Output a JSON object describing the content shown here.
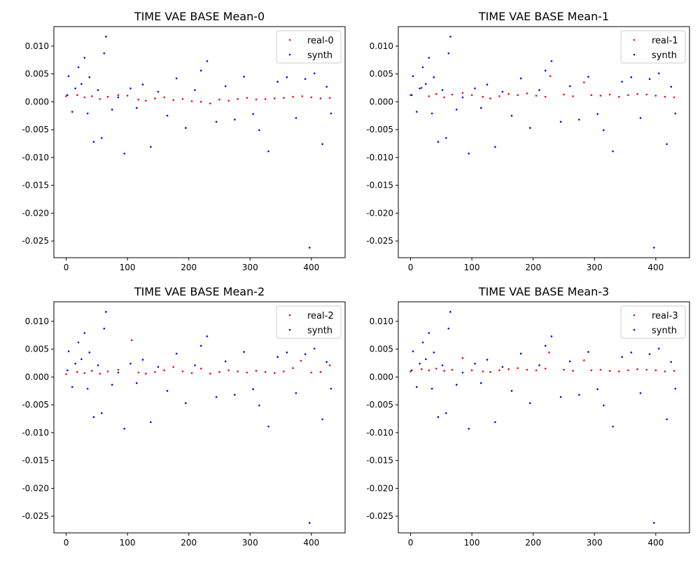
{
  "chart_data": [
    {
      "type": "scatter",
      "title": "TIME VAE BASE Mean-0",
      "xlim": [
        -20,
        455
      ],
      "ylim": [
        -0.028,
        0.0135
      ],
      "x_ticks": [
        0,
        100,
        200,
        300,
        400
      ],
      "y_ticks": [
        0.01,
        0.005,
        0.0,
        -0.005,
        -0.01,
        -0.015,
        -0.02,
        -0.025
      ],
      "legend_position": "top-right",
      "series": [
        {
          "name": "real-0",
          "color": "#ff0000",
          "x": [
            0,
            18,
            30,
            42,
            55,
            68,
            85,
            100,
            118,
            130,
            145,
            160,
            175,
            190,
            205,
            220,
            235,
            250,
            265,
            280,
            295,
            310,
            325,
            340,
            355,
            370,
            385,
            400,
            415,
            430
          ],
          "y": [
            0.001,
            0.0012,
            0.0008,
            0.001,
            0.0005,
            0.0009,
            0.0012,
            0.0011,
            0.0004,
            0.0002,
            0.0006,
            0.0008,
            0.0003,
            0.0005,
            0.0001,
            0.0,
            -0.0003,
            0.0004,
            0.0002,
            0.0005,
            0.0007,
            0.0004,
            0.0005,
            0.0006,
            0.0007,
            0.0009,
            0.001,
            0.0008,
            0.0006,
            0.0007
          ]
        },
        {
          "name": "synth",
          "color": "#0000ff",
          "x": [
            2,
            4,
            10,
            15,
            20,
            25,
            30,
            35,
            38,
            45,
            52,
            58,
            62,
            65,
            75,
            85,
            95,
            105,
            115,
            125,
            138,
            150,
            165,
            180,
            195,
            210,
            220,
            230,
            245,
            260,
            275,
            290,
            305,
            315,
            330,
            345,
            360,
            375,
            390,
            397,
            405,
            418,
            425,
            432
          ],
          "y": [
            0.0012,
            0.0046,
            -0.0018,
            0.0024,
            0.0062,
            0.0032,
            0.0079,
            -0.0021,
            0.0044,
            -0.0072,
            0.0021,
            -0.0065,
            0.0087,
            0.0117,
            -0.0014,
            0.0008,
            -0.0093,
            0.0024,
            -0.0011,
            0.0031,
            -0.0081,
            0.0018,
            -0.0025,
            0.0042,
            -0.0047,
            0.0021,
            0.0056,
            0.0073,
            -0.0036,
            0.0028,
            -0.0032,
            0.0045,
            -0.0022,
            -0.0051,
            -0.0089,
            0.0036,
            0.0044,
            -0.0029,
            0.0041,
            -0.0262,
            0.0051,
            -0.0076,
            0.0027,
            -0.0021
          ]
        }
      ]
    },
    {
      "type": "scatter",
      "title": "TIME VAE BASE Mean-1",
      "xlim": [
        -20,
        455
      ],
      "ylim": [
        -0.028,
        0.0135
      ],
      "x_ticks": [
        0,
        100,
        200,
        300,
        400
      ],
      "y_ticks": [
        0.01,
        0.005,
        0.0,
        -0.005,
        -0.01,
        -0.015,
        -0.02,
        -0.025
      ],
      "legend_position": "top-right",
      "series": [
        {
          "name": "real-1",
          "color": "#ff0000",
          "x": [
            0,
            18,
            30,
            42,
            55,
            68,
            85,
            100,
            118,
            130,
            145,
            160,
            175,
            190,
            205,
            220,
            228,
            250,
            265,
            283,
            295,
            310,
            325,
            340,
            355,
            370,
            385,
            400,
            415,
            430
          ],
          "y": [
            0.0012,
            0.0025,
            0.001,
            0.0014,
            0.0008,
            0.0013,
            0.0016,
            0.0012,
            0.0009,
            0.0006,
            0.001,
            0.0014,
            0.0012,
            0.0015,
            0.0011,
            0.0009,
            0.0046,
            0.0013,
            0.001,
            0.0035,
            0.0012,
            0.0011,
            0.0013,
            0.0009,
            0.0012,
            0.0014,
            0.0013,
            0.0011,
            0.0009,
            0.0008
          ]
        },
        {
          "name": "synth",
          "color": "#0000ff",
          "x": [
            2,
            4,
            10,
            15,
            20,
            25,
            30,
            35,
            38,
            45,
            52,
            58,
            62,
            65,
            75,
            85,
            95,
            105,
            115,
            125,
            138,
            150,
            165,
            180,
            195,
            210,
            220,
            230,
            245,
            260,
            275,
            290,
            305,
            315,
            330,
            345,
            360,
            375,
            390,
            397,
            405,
            418,
            425,
            432
          ],
          "y": [
            0.0012,
            0.0046,
            -0.0018,
            0.0024,
            0.0062,
            0.0032,
            0.0079,
            -0.0021,
            0.0044,
            -0.0072,
            0.0021,
            -0.0065,
            0.0087,
            0.0117,
            -0.0014,
            0.0008,
            -0.0093,
            0.0024,
            -0.0011,
            0.0031,
            -0.0081,
            0.0018,
            -0.0025,
            0.0042,
            -0.0047,
            0.0021,
            0.0056,
            0.0073,
            -0.0036,
            0.0028,
            -0.0032,
            0.0045,
            -0.0022,
            -0.0051,
            -0.0089,
            0.0036,
            0.0044,
            -0.0029,
            0.0041,
            -0.0262,
            0.0051,
            -0.0076,
            0.0027,
            -0.0021
          ]
        }
      ]
    },
    {
      "type": "scatter",
      "title": "TIME VAE BASE Mean-2",
      "xlim": [
        -20,
        455
      ],
      "ylim": [
        -0.028,
        0.0135
      ],
      "x_ticks": [
        0,
        100,
        200,
        300,
        400
      ],
      "y_ticks": [
        0.01,
        0.005,
        0.0,
        -0.005,
        -0.01,
        -0.015,
        -0.02,
        -0.025
      ],
      "legend_position": "top-right",
      "series": [
        {
          "name": "real-2",
          "color": "#ff0000",
          "x": [
            0,
            18,
            30,
            42,
            55,
            68,
            85,
            107,
            118,
            130,
            145,
            160,
            175,
            190,
            205,
            220,
            235,
            250,
            265,
            280,
            295,
            310,
            325,
            340,
            355,
            370,
            383,
            400,
            415,
            430
          ],
          "y": [
            0.0005,
            0.0009,
            0.0007,
            0.0011,
            0.0006,
            0.001,
            0.0013,
            0.0066,
            0.0008,
            0.0006,
            0.0009,
            0.0012,
            0.0018,
            0.001,
            0.0007,
            0.0015,
            0.0006,
            0.0009,
            0.0012,
            0.001,
            0.0008,
            0.0011,
            0.0009,
            0.0007,
            0.001,
            0.0016,
            0.0029,
            0.0008,
            0.0009,
            0.0021
          ]
        },
        {
          "name": "synth",
          "color": "#0000ff",
          "x": [
            2,
            4,
            10,
            15,
            20,
            25,
            30,
            35,
            38,
            45,
            52,
            58,
            62,
            65,
            75,
            85,
            95,
            105,
            115,
            125,
            138,
            150,
            165,
            180,
            195,
            210,
            220,
            230,
            245,
            260,
            275,
            290,
            305,
            315,
            330,
            345,
            360,
            375,
            390,
            397,
            405,
            418,
            425,
            432
          ],
          "y": [
            0.0012,
            0.0046,
            -0.0018,
            0.0024,
            0.0062,
            0.0032,
            0.0079,
            -0.0021,
            0.0044,
            -0.0072,
            0.0021,
            -0.0065,
            0.0087,
            0.0117,
            -0.0014,
            0.0008,
            -0.0093,
            0.0024,
            -0.0011,
            0.0031,
            -0.0081,
            0.0018,
            -0.0025,
            0.0042,
            -0.0047,
            0.0021,
            0.0056,
            0.0073,
            -0.0036,
            0.0028,
            -0.0032,
            0.0045,
            -0.0022,
            -0.0051,
            -0.0089,
            0.0036,
            0.0044,
            -0.0029,
            0.0041,
            -0.0262,
            0.0051,
            -0.0076,
            0.0027,
            -0.0021
          ]
        }
      ]
    },
    {
      "type": "scatter",
      "title": "TIME VAE BASE Mean-3",
      "xlim": [
        -20,
        455
      ],
      "ylim": [
        -0.028,
        0.0135
      ],
      "x_ticks": [
        0,
        100,
        200,
        300,
        400
      ],
      "y_ticks": [
        0.01,
        0.005,
        0.0,
        -0.005,
        -0.01,
        -0.015,
        -0.02,
        -0.025
      ],
      "legend_position": "top-right",
      "series": [
        {
          "name": "real-3",
          "color": "#ff0000",
          "x": [
            0,
            18,
            30,
            42,
            55,
            68,
            85,
            100,
            118,
            130,
            145,
            160,
            175,
            190,
            205,
            220,
            226,
            250,
            265,
            283,
            295,
            310,
            325,
            340,
            355,
            370,
            385,
            400,
            415,
            430
          ],
          "y": [
            0.001,
            0.0014,
            0.0012,
            0.0015,
            0.0011,
            0.0013,
            0.0034,
            0.0012,
            0.001,
            0.0009,
            0.0012,
            0.0014,
            0.0016,
            0.0013,
            0.0012,
            0.0015,
            0.0044,
            0.0013,
            0.0011,
            0.003,
            0.0012,
            0.0013,
            0.0011,
            0.001,
            0.0012,
            0.0014,
            0.0013,
            0.0012,
            0.001,
            0.0011
          ]
        },
        {
          "name": "synth",
          "color": "#0000ff",
          "x": [
            2,
            4,
            10,
            15,
            20,
            25,
            30,
            35,
            38,
            45,
            52,
            58,
            62,
            65,
            75,
            85,
            95,
            105,
            115,
            125,
            138,
            150,
            165,
            180,
            195,
            210,
            220,
            230,
            245,
            260,
            275,
            290,
            305,
            315,
            330,
            345,
            360,
            375,
            390,
            397,
            405,
            418,
            425,
            432
          ],
          "y": [
            0.0012,
            0.0046,
            -0.0018,
            0.0024,
            0.0062,
            0.0032,
            0.0079,
            -0.0021,
            0.0044,
            -0.0072,
            0.0021,
            -0.0065,
            0.0087,
            0.0117,
            -0.0014,
            0.0008,
            -0.0093,
            0.0024,
            -0.0011,
            0.0031,
            -0.0081,
            0.0018,
            -0.0025,
            0.0042,
            -0.0047,
            0.0021,
            0.0056,
            0.0073,
            -0.0036,
            0.0028,
            -0.0032,
            0.0045,
            -0.0022,
            -0.0051,
            -0.0089,
            0.0036,
            0.0044,
            -0.0029,
            0.0041,
            -0.0262,
            0.0051,
            -0.0076,
            0.0027,
            -0.0021
          ]
        }
      ]
    }
  ]
}
